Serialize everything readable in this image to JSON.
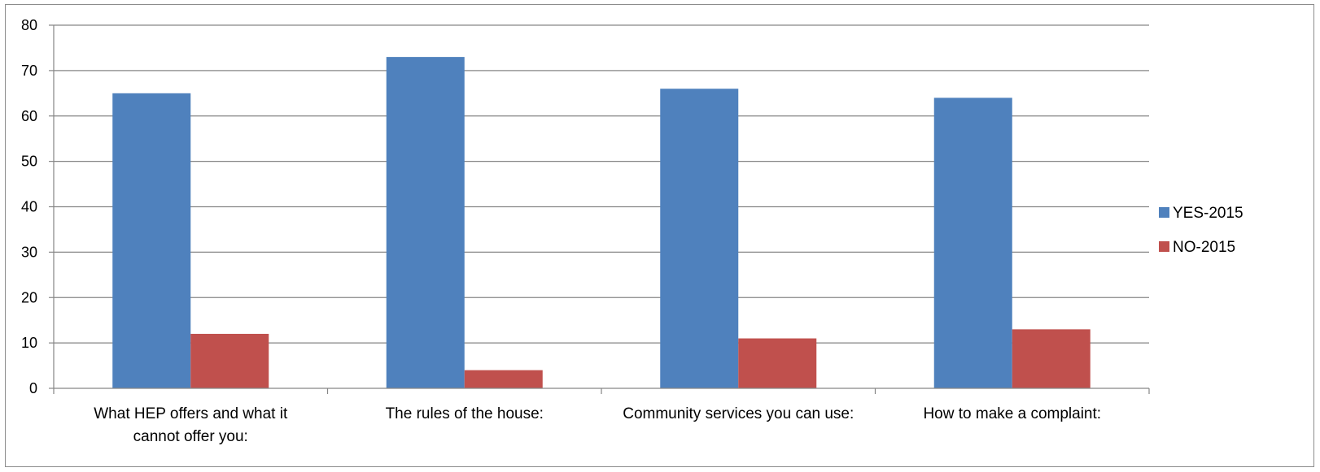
{
  "chart_data": {
    "type": "bar",
    "categories": [
      [
        "What HEP offers and what it",
        "cannot offer you:"
      ],
      [
        "The rules of the house:"
      ],
      [
        "Community services you can use:"
      ],
      [
        "How to make a complaint:"
      ]
    ],
    "series": [
      {
        "name": "YES-2015",
        "color": "#4f81bd",
        "values": [
          65,
          73,
          66,
          64
        ]
      },
      {
        "name": "NO-2015",
        "color": "#c0504d",
        "values": [
          12,
          4,
          11,
          13
        ]
      }
    ],
    "ylim": [
      0,
      80
    ],
    "yticks": [
      0,
      10,
      20,
      30,
      40,
      50,
      60,
      70,
      80
    ],
    "grid": true,
    "legend_position": "right"
  }
}
